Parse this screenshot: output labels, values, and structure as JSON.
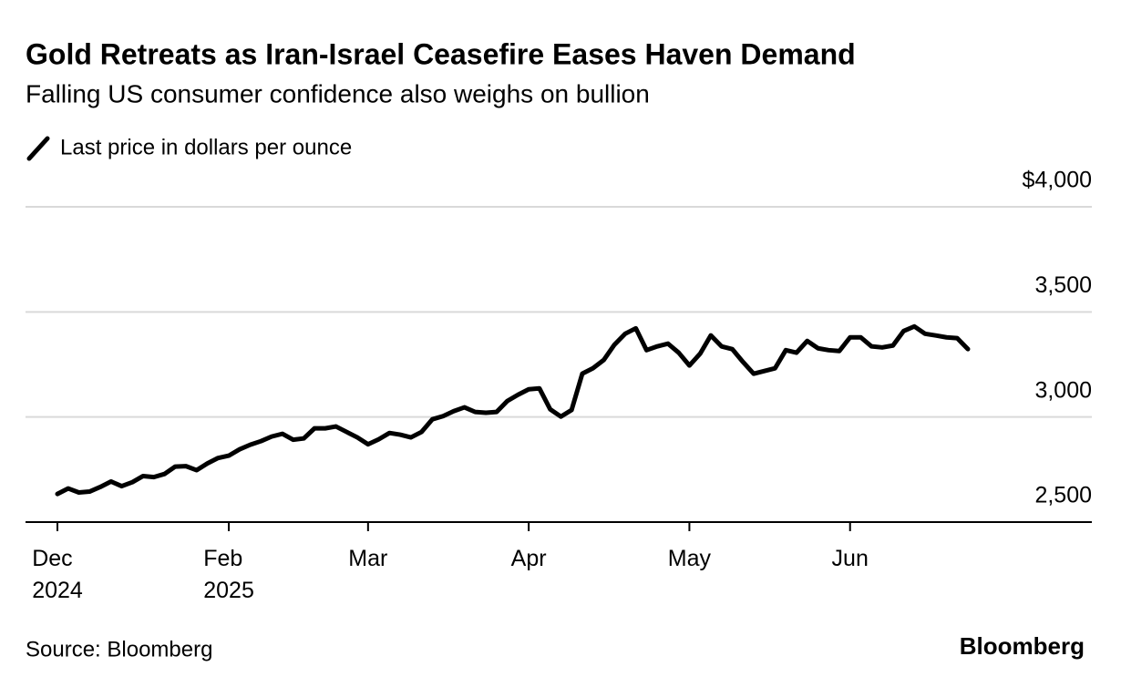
{
  "chart_data": {
    "type": "line",
    "title": "Gold Retreats as Iran-Israel Ceasefire Eases Haven Demand",
    "subtitle": "Falling US consumer confidence also weighs on bullion",
    "source": "Source: Bloomberg",
    "brand": "Bloomberg",
    "categories": [
      "Dec 2024",
      null,
      null,
      null,
      null,
      null,
      null,
      null,
      null,
      null,
      null,
      null,
      null,
      null,
      null,
      null,
      "Feb 2025",
      null,
      null,
      null,
      null,
      null,
      null,
      null,
      null,
      null,
      null,
      null,
      null,
      "Mar",
      null,
      null,
      null,
      null,
      null,
      null,
      null,
      null,
      null,
      null,
      null,
      null,
      null,
      null,
      "Apr",
      null,
      null,
      null,
      null,
      null,
      null,
      null,
      null,
      null,
      null,
      null,
      null,
      null,
      null,
      "May",
      null,
      null,
      null,
      null,
      null,
      null,
      null,
      null,
      null,
      null,
      null,
      null,
      null,
      null,
      "Jun",
      null,
      null,
      null,
      null,
      null,
      null,
      null,
      null,
      null,
      null,
      null
    ],
    "series": [
      {
        "name": "Last price in dollars per ounce",
        "color": "#000000",
        "values": [
          2634,
          2660,
          2641,
          2645,
          2667,
          2693,
          2671,
          2690,
          2719,
          2714,
          2729,
          2764,
          2766,
          2747,
          2779,
          2805,
          2816,
          2846,
          2868,
          2885,
          2907,
          2920,
          2892,
          2898,
          2946,
          2946,
          2955,
          2929,
          2903,
          2870,
          2894,
          2924,
          2916,
          2903,
          2929,
          2989,
          3004,
          3028,
          3046,
          3024,
          3020,
          3024,
          3076,
          3106,
          3132,
          3136,
          3037,
          3002,
          3033,
          3206,
          3232,
          3271,
          3344,
          3396,
          3422,
          3318,
          3336,
          3349,
          3306,
          3245,
          3301,
          3388,
          3336,
          3323,
          3262,
          3206,
          3219,
          3232,
          3318,
          3306,
          3362,
          3327,
          3318,
          3314,
          3379,
          3379,
          3336,
          3331,
          3340,
          3409,
          3431,
          3396,
          3388,
          3379,
          3375,
          3323
        ]
      }
    ],
    "ylim": [
      2500,
      4000
    ],
    "yticks": [
      {
        "value": 2500,
        "label": "2,500"
      },
      {
        "value": 3000,
        "label": "3,000"
      },
      {
        "value": 3500,
        "label": "3,500"
      },
      {
        "value": 4000,
        "label": "$4,000"
      }
    ],
    "grid": true
  }
}
